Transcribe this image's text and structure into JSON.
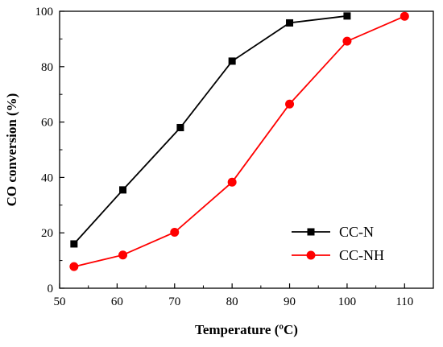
{
  "chart_data": {
    "type": "line",
    "title": "",
    "xlabel": "Temperature (ºC)",
    "ylabel": "CO conversion (%)",
    "xlim": [
      50,
      115
    ],
    "ylim": [
      0,
      100
    ],
    "x_ticks": [
      50,
      60,
      70,
      80,
      90,
      100,
      110
    ],
    "y_ticks": [
      0,
      20,
      40,
      60,
      80,
      100
    ],
    "grid": false,
    "legend_position": "bottom-right",
    "series": [
      {
        "name": "CC-N",
        "color": "#000000",
        "marker": "square",
        "x": [
          52.5,
          61,
          71,
          80,
          90,
          100
        ],
        "y": [
          16,
          35.5,
          58,
          82,
          95.8,
          98.3
        ]
      },
      {
        "name": "CC-NH",
        "color": "#ff0000",
        "marker": "circle",
        "x": [
          52.5,
          61,
          70,
          80,
          90,
          100,
          110
        ],
        "y": [
          7.8,
          12,
          20.2,
          38.3,
          66.5,
          89.2,
          98.2
        ]
      }
    ]
  }
}
